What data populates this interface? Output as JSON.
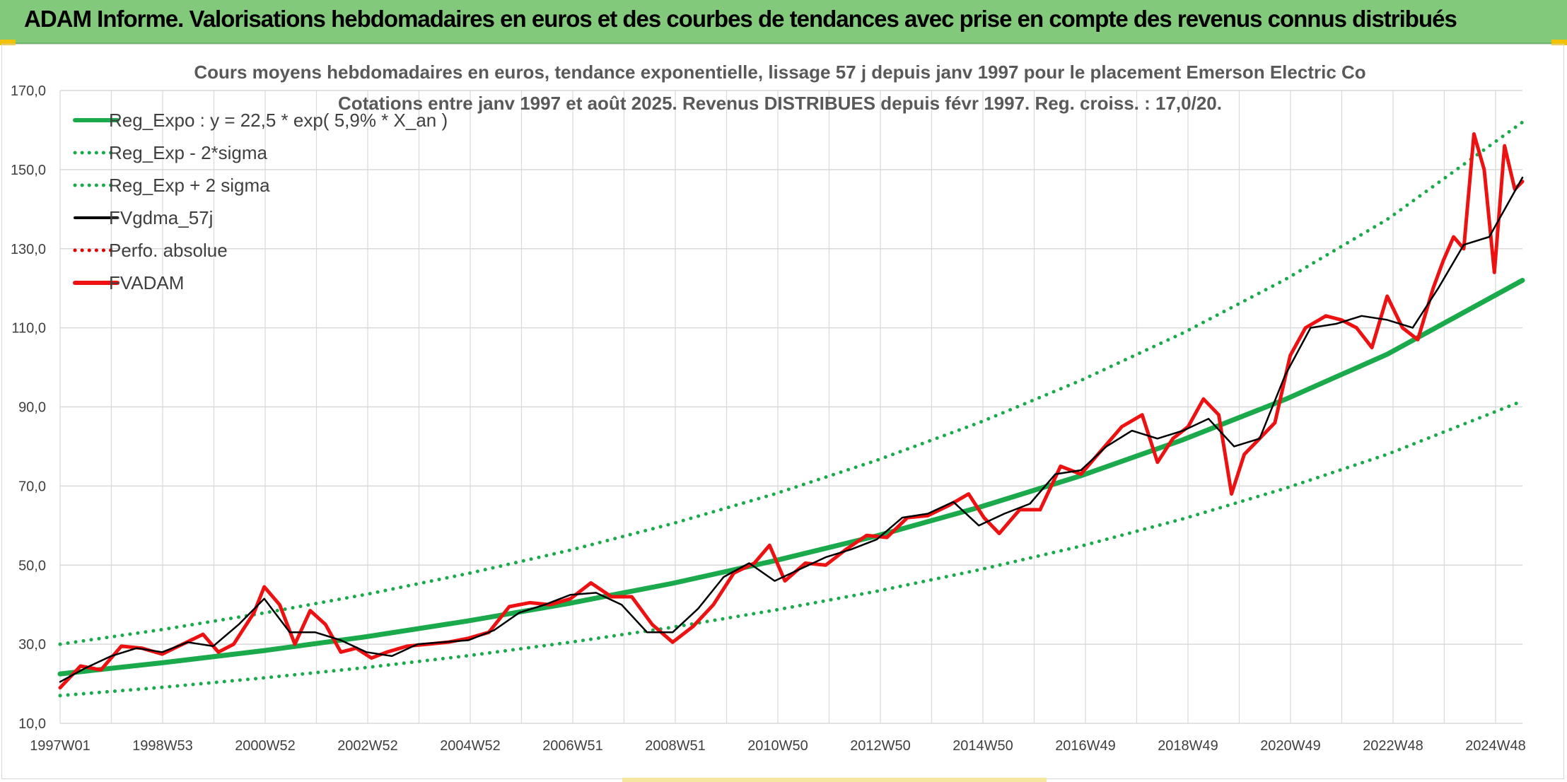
{
  "header": {
    "title": "ADAM Informe. Valorisations hebdomadaires en euros et des courbes de tendances avec prise en compte des revenus connus distribués"
  },
  "colors": {
    "header_bg": "#82c97c",
    "reg_expo": "#1aaa4b",
    "sigma_lines": "#1aaa4b",
    "fvgdma": "#000000",
    "perfo": "#e00000",
    "fvadam": "#ee1111",
    "grid": "#d9d9d9"
  },
  "chart_data": {
    "type": "line",
    "title": "Cours moyens hebdomadaires en euros, tendance exponentielle, lissage 57 j depuis janv 1997 pour le placement Emerson Electric Co",
    "subtitle": "Cotations entre janv 1997 et août 2025. Revenus DISTRIBUES depuis févr 1997. Reg. croiss. : 17,0/20.",
    "xlabel": "",
    "ylabel": "",
    "ylim": [
      10,
      170
    ],
    "yticks": [
      "10,0",
      "30,0",
      "50,0",
      "70,0",
      "90,0",
      "110,0",
      "130,0",
      "150,0",
      "170,0"
    ],
    "xlim": [
      1997.0,
      2025.65
    ],
    "xtick_labels": [
      "1997W01",
      "1998W53",
      "2000W52",
      "2002W52",
      "2004W52",
      "2006W51",
      "2008W51",
      "2010W50",
      "2012W50",
      "2014W50",
      "2016W49",
      "2018W49",
      "2020W49",
      "2022W48",
      "2024W48"
    ],
    "grid": true,
    "legend_position": "top-left",
    "legend": [
      {
        "label": "Reg_Expo : y = 22,5 * exp( 5,9% *  X_an )",
        "style": "solid",
        "color": "#1aaa4b"
      },
      {
        "label": "Reg_Exp - 2*sigma",
        "style": "dotted",
        "color": "#1aaa4b"
      },
      {
        "label": "Reg_Exp + 2 sigma",
        "style": "dotted",
        "color": "#1aaa4b"
      },
      {
        "label": "FVgdma_57j",
        "style": "solid",
        "color": "#000000"
      },
      {
        "label": "Perfo. absolue",
        "style": "dotted",
        "color": "#e00000"
      },
      {
        "label": "FVADAM",
        "style": "solid",
        "color": "#ee1111"
      }
    ],
    "series": [
      {
        "name": "Reg_Expo : y = 22,5 * exp( 5,9% *  X_an )",
        "x": [
          1997.0,
          1999.0,
          2001.0,
          2003.0,
          2005.0,
          2007.0,
          2009.0,
          2011.0,
          2013.0,
          2015.0,
          2017.0,
          2019.0,
          2021.0,
          2023.0,
          2025.65
        ],
        "y": [
          22.5,
          25.3,
          28.4,
          31.9,
          35.9,
          40.4,
          45.4,
          51.1,
          57.4,
          64.6,
          72.6,
          81.7,
          91.9,
          103.3,
          122.0
        ]
      },
      {
        "name": "Reg_Exp - 2*sigma",
        "x": [
          1997.0,
          1999.0,
          2001.0,
          2003.0,
          2005.0,
          2007.0,
          2009.0,
          2011.0,
          2013.0,
          2015.0,
          2017.0,
          2019.0,
          2021.0,
          2023.0,
          2025.65
        ],
        "y": [
          17.0,
          19.1,
          21.5,
          24.1,
          27.1,
          30.5,
          34.3,
          38.6,
          43.4,
          48.8,
          54.8,
          61.7,
          69.4,
          78.0,
          91.5
        ]
      },
      {
        "name": "Reg_Exp + 2 sigma",
        "x": [
          1997.0,
          1999.0,
          2001.0,
          2003.0,
          2005.0,
          2007.0,
          2009.0,
          2011.0,
          2013.0,
          2015.0,
          2017.0,
          2019.0,
          2021.0,
          2023.0,
          2025.65
        ],
        "y": [
          30.0,
          33.7,
          37.9,
          42.6,
          47.9,
          53.8,
          60.5,
          68.0,
          76.5,
          86.0,
          96.7,
          108.7,
          122.2,
          137.4,
          162.0
        ]
      },
      {
        "name": "FVgdma_57j",
        "x": [
          1997.0,
          1997.5,
          1998.0,
          1998.5,
          1999.0,
          1999.5,
          2000.0,
          2000.5,
          2001.0,
          2001.5,
          2002.0,
          2002.5,
          2003.0,
          2003.5,
          2004.0,
          2004.5,
          2005.0,
          2005.5,
          2006.0,
          2006.5,
          2007.0,
          2007.5,
          2008.0,
          2008.5,
          2009.0,
          2009.5,
          2010.0,
          2010.5,
          2011.0,
          2011.5,
          2012.0,
          2012.5,
          2013.0,
          2013.5,
          2014.0,
          2014.5,
          2015.0,
          2015.5,
          2016.0,
          2016.5,
          2017.0,
          2017.5,
          2018.0,
          2018.5,
          2019.0,
          2019.5,
          2020.0,
          2020.5,
          2021.0,
          2021.5,
          2022.0,
          2022.5,
          2023.0,
          2023.5,
          2024.0,
          2024.5,
          2025.0,
          2025.65
        ],
        "y": [
          20.5,
          24.0,
          27.0,
          29.0,
          28.0,
          30.5,
          29.5,
          35.0,
          41.5,
          33.0,
          33.0,
          31.0,
          28.0,
          27.0,
          30.0,
          30.5,
          31.0,
          33.5,
          38.0,
          40.0,
          42.5,
          43.0,
          40.0,
          33.0,
          33.0,
          39.0,
          47.0,
          50.5,
          46.0,
          49.0,
          52.0,
          54.0,
          56.5,
          62.0,
          63.0,
          66.0,
          60.0,
          63.0,
          65.5,
          73.0,
          74.0,
          80.0,
          84.0,
          82.0,
          84.0,
          87.0,
          80.0,
          82.0,
          98.0,
          110.0,
          111.0,
          113.0,
          112.0,
          110.0,
          120.0,
          131.0,
          133.0,
          148.0
        ]
      },
      {
        "name": "FVADAM",
        "x": [
          1997.0,
          1997.4,
          1997.8,
          1998.2,
          1998.6,
          1999.0,
          1999.4,
          1999.8,
          2000.1,
          2000.4,
          2000.8,
          2001.0,
          2001.3,
          2001.6,
          2001.9,
          2002.2,
          2002.5,
          2002.8,
          2003.1,
          2003.4,
          2003.8,
          2004.2,
          2004.6,
          2005.0,
          2005.4,
          2005.8,
          2006.2,
          2006.6,
          2007.0,
          2007.4,
          2007.8,
          2008.2,
          2008.6,
          2009.0,
          2009.4,
          2009.8,
          2010.2,
          2010.6,
          2010.9,
          2011.2,
          2011.6,
          2012.0,
          2012.4,
          2012.8,
          2013.2,
          2013.6,
          2014.0,
          2014.4,
          2014.8,
          2015.1,
          2015.4,
          2015.8,
          2016.2,
          2016.6,
          2017.0,
          2017.4,
          2017.8,
          2018.2,
          2018.5,
          2018.8,
          2019.1,
          2019.4,
          2019.7,
          2019.95,
          2020.2,
          2020.5,
          2020.8,
          2021.1,
          2021.4,
          2021.8,
          2022.1,
          2022.4,
          2022.7,
          2023.0,
          2023.3,
          2023.6,
          2023.9,
          2024.1,
          2024.3,
          2024.5,
          2024.7,
          2024.9,
          2025.1,
          2025.3,
          2025.5,
          2025.65
        ],
        "y": [
          19.0,
          24.5,
          23.5,
          29.5,
          29.0,
          27.5,
          30.0,
          32.5,
          28.0,
          30.0,
          38.0,
          44.5,
          40.0,
          30.0,
          38.5,
          35.0,
          28.0,
          29.0,
          26.5,
          28.0,
          29.5,
          30.0,
          30.5,
          31.5,
          33.0,
          39.5,
          40.5,
          40.0,
          41.5,
          45.5,
          42.0,
          42.0,
          35.0,
          30.5,
          34.5,
          40.0,
          48.0,
          50.5,
          55.0,
          46.0,
          50.5,
          50.0,
          54.0,
          57.5,
          57.0,
          62.0,
          62.5,
          65.0,
          68.0,
          62.0,
          58.0,
          64.0,
          64.0,
          75.0,
          73.0,
          79.0,
          85.0,
          88.0,
          76.0,
          82.0,
          85.0,
          92.0,
          88.0,
          68.0,
          78.0,
          82.0,
          86.0,
          103.0,
          110.0,
          113.0,
          112.0,
          110.0,
          105.0,
          118.0,
          110.0,
          107.0,
          120.0,
          127.0,
          133.0,
          130.0,
          159.0,
          150.0,
          124.0,
          156.0,
          145.0,
          147.0
        ]
      }
    ]
  }
}
